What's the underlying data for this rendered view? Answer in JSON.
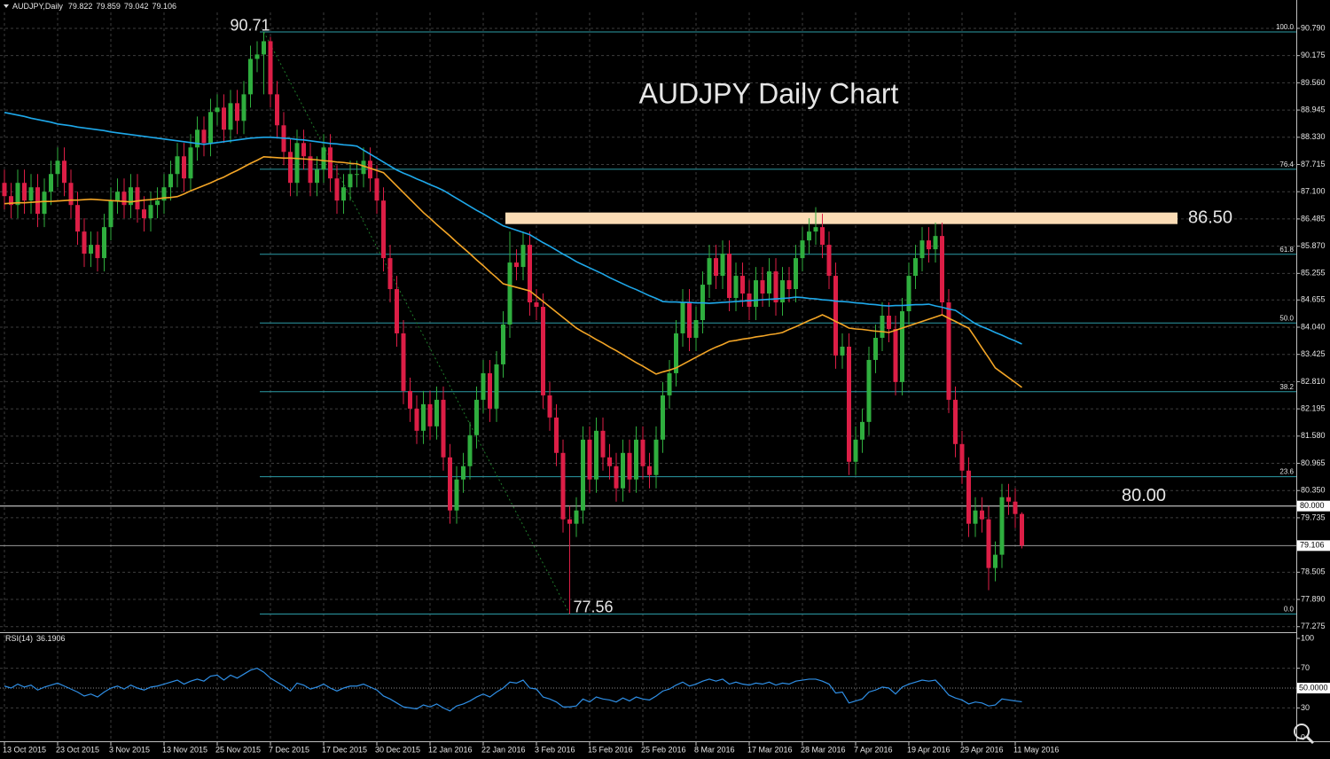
{
  "chart_data": {
    "type": "candlestick",
    "symbol_label": "AUDJPY,Daily",
    "title": "AUDJPY Daily Chart",
    "categories": [
      "13 Oct 2015",
      null,
      null,
      null,
      null,
      null,
      null,
      null,
      "23 Oct 2015",
      null,
      null,
      null,
      null,
      null,
      null,
      null,
      "3 Nov 2015",
      null,
      null,
      null,
      null,
      null,
      null,
      null,
      "13 Nov 2015",
      null,
      null,
      null,
      null,
      null,
      null,
      null,
      "25 Nov 2015",
      null,
      null,
      null,
      null,
      null,
      null,
      null,
      "7 Dec 2015",
      null,
      null,
      null,
      null,
      null,
      null,
      null,
      "17 Dec 2015",
      null,
      null,
      null,
      null,
      null,
      null,
      null,
      "30 Dec 2015",
      null,
      null,
      null,
      null,
      null,
      null,
      null,
      "12 Jan 2016",
      null,
      null,
      null,
      null,
      null,
      null,
      null,
      "22 Jan 2016",
      null,
      null,
      null,
      null,
      null,
      null,
      null,
      "3 Feb 2016",
      null,
      null,
      null,
      null,
      null,
      null,
      null,
      "15 Feb 2016",
      null,
      null,
      null,
      null,
      null,
      null,
      null,
      "25 Feb 2016",
      null,
      null,
      null,
      null,
      null,
      null,
      null,
      "8 Mar 2016",
      null,
      null,
      null,
      null,
      null,
      null,
      null,
      "17 Mar 2016",
      null,
      null,
      null,
      null,
      null,
      null,
      null,
      "28 Mar 2016",
      null,
      null,
      null,
      null,
      null,
      null,
      null,
      "7 Apr 2016",
      null,
      null,
      null,
      null,
      null,
      null,
      null,
      "19 Apr 2016",
      null,
      null,
      null,
      null,
      null,
      null,
      null,
      "29 Apr 2016",
      null,
      null,
      null,
      null,
      null,
      null,
      null,
      "11 May 2016",
      null
    ],
    "open": [
      87.3,
      87.0,
      86.8,
      87.3,
      86.9,
      87.2,
      86.6,
      87.1,
      87.5,
      87.8,
      87.3,
      86.8,
      86.2,
      85.7,
      85.9,
      85.6,
      86.3,
      86.9,
      87.1,
      86.8,
      87.2,
      86.7,
      86.5,
      86.8,
      86.9,
      87.2,
      87.5,
      87.9,
      87.4,
      88.1,
      88.5,
      88.2,
      88.9,
      89.0,
      88.5,
      89.1,
      88.7,
      89.3,
      90.1,
      90.2,
      90.5,
      89.3,
      88.6,
      88.0,
      87.3,
      88.2,
      87.9,
      87.3,
      87.6,
      88.1,
      87.4,
      86.9,
      87.2,
      87.5,
      87.5,
      87.8,
      87.4,
      86.9,
      85.6,
      84.9,
      83.9,
      82.6,
      82.2,
      81.7,
      82.3,
      81.8,
      82.4,
      81.1,
      79.9,
      80.6,
      80.9,
      81.6,
      82.4,
      83.0,
      82.2,
      83.2,
      84.1,
      85.5,
      85.4,
      85.9,
      84.6,
      84.5,
      82.5,
      82.0,
      81.2,
      79.7,
      79.6,
      79.9,
      81.5,
      80.6,
      81.7,
      81.1,
      80.9,
      80.4,
      81.2,
      80.6,
      81.5,
      80.9,
      80.7,
      81.5,
      82.5,
      83.0,
      83.9,
      84.6,
      83.8,
      84.2,
      85.0,
      85.6,
      85.2,
      85.7,
      84.7,
      85.2,
      84.8,
      84.5,
      85.1,
      84.8,
      85.3,
      84.6,
      85.1,
      84.9,
      85.6,
      86.0,
      86.2,
      86.3,
      85.9,
      85.2,
      83.4,
      83.6,
      81.0,
      81.5,
      81.9,
      83.3,
      83.8,
      84.3,
      84.0,
      82.8,
      84.4,
      85.2,
      85.6,
      86.0,
      85.8,
      86.1,
      84.6,
      82.4,
      81.4,
      80.8,
      79.6,
      79.9,
      79.7,
      78.6,
      78.9,
      80.2,
      80.1,
      79.822
    ],
    "high": [
      87.6,
      87.3,
      87.6,
      87.6,
      87.5,
      87.5,
      87.4,
      87.8,
      88.1,
      88.1,
      87.6,
      87.1,
      86.5,
      86.2,
      86.2,
      86.6,
      87.2,
      87.4,
      87.4,
      87.5,
      87.5,
      87.0,
      87.1,
      87.2,
      87.5,
      87.8,
      88.2,
      88.2,
      88.4,
      88.8,
      88.8,
      89.2,
      89.3,
      89.3,
      89.4,
      89.4,
      89.6,
      90.4,
      90.5,
      90.71,
      90.6,
      89.6,
      88.9,
      88.3,
      88.5,
      88.5,
      88.2,
      87.9,
      88.4,
      88.4,
      87.7,
      87.5,
      87.8,
      87.8,
      88.1,
      88.1,
      87.7,
      87.2,
      85.9,
      85.2,
      84.2,
      82.9,
      82.5,
      82.6,
      82.6,
      82.7,
      82.7,
      81.4,
      80.9,
      81.2,
      81.9,
      82.7,
      83.3,
      83.3,
      83.5,
      84.4,
      86.2,
      85.8,
      86.2,
      86.2,
      84.9,
      84.8,
      82.8,
      82.3,
      81.5,
      80.0,
      80.2,
      81.8,
      81.8,
      82.0,
      82.0,
      81.4,
      81.2,
      81.5,
      81.5,
      81.8,
      81.8,
      81.2,
      81.8,
      82.8,
      83.3,
      84.2,
      84.9,
      84.9,
      84.5,
      85.3,
      85.9,
      85.9,
      86.0,
      86.0,
      85.5,
      85.5,
      85.1,
      85.4,
      85.4,
      85.6,
      85.6,
      85.4,
      85.4,
      85.9,
      86.3,
      86.5,
      86.75,
      86.6,
      86.2,
      85.5,
      83.9,
      83.9,
      81.8,
      82.2,
      83.6,
      84.1,
      84.6,
      84.6,
      84.3,
      84.7,
      85.5,
      85.9,
      86.3,
      86.3,
      86.4,
      86.4,
      84.9,
      82.7,
      81.7,
      81.1,
      80.2,
      80.2,
      80.0,
      79.2,
      80.5,
      80.5,
      80.4,
      79.859
    ],
    "low": [
      86.7,
      86.5,
      86.5,
      86.6,
      86.6,
      86.3,
      86.3,
      86.8,
      87.2,
      87.0,
      86.5,
      85.9,
      85.4,
      85.4,
      85.3,
      85.3,
      86.0,
      86.6,
      86.5,
      86.5,
      86.4,
      86.2,
      86.2,
      86.5,
      86.6,
      86.9,
      87.2,
      87.1,
      87.1,
      87.8,
      87.9,
      87.9,
      88.6,
      88.2,
      88.2,
      88.4,
      88.4,
      89.0,
      89.8,
      89.3,
      89.0,
      88.3,
      87.7,
      87.0,
      87.0,
      87.6,
      87.0,
      87.0,
      87.3,
      87.1,
      86.6,
      86.6,
      86.9,
      87.2,
      87.2,
      87.1,
      86.6,
      85.3,
      84.6,
      83.6,
      82.3,
      81.9,
      81.4,
      81.4,
      81.5,
      81.5,
      80.8,
      79.6,
      79.6,
      80.3,
      80.6,
      81.3,
      82.1,
      81.9,
      81.9,
      82.9,
      83.8,
      85.1,
      85.1,
      84.3,
      84.2,
      82.2,
      81.7,
      80.9,
      79.4,
      77.56,
      79.3,
      79.6,
      80.3,
      80.3,
      80.8,
      80.6,
      80.1,
      80.1,
      80.3,
      80.3,
      80.6,
      80.4,
      80.4,
      81.2,
      82.2,
      82.7,
      83.6,
      83.5,
      83.5,
      83.9,
      84.7,
      84.9,
      84.9,
      84.4,
      84.4,
      84.5,
      84.2,
      84.2,
      84.5,
      84.5,
      84.3,
      84.3,
      84.6,
      84.6,
      85.3,
      85.7,
      85.9,
      85.6,
      84.9,
      83.1,
      83.1,
      80.7,
      80.7,
      81.2,
      81.6,
      83.0,
      83.5,
      83.7,
      82.5,
      82.5,
      84.1,
      84.9,
      85.3,
      85.5,
      85.5,
      84.3,
      82.1,
      81.1,
      80.5,
      79.3,
      79.3,
      79.4,
      78.1,
      78.3,
      78.6,
      79.8,
      79.5,
      79.042
    ],
    "close": [
      87.0,
      86.8,
      87.3,
      86.9,
      87.2,
      86.6,
      87.1,
      87.5,
      87.8,
      87.3,
      86.8,
      86.2,
      85.7,
      85.9,
      85.6,
      86.3,
      86.9,
      87.1,
      86.8,
      87.2,
      86.7,
      86.5,
      86.8,
      86.9,
      87.2,
      87.5,
      87.9,
      87.4,
      88.1,
      88.5,
      88.2,
      88.9,
      89.0,
      88.5,
      89.1,
      88.7,
      89.3,
      90.1,
      90.2,
      90.5,
      89.3,
      88.6,
      88.0,
      87.3,
      88.2,
      87.9,
      87.3,
      87.6,
      88.1,
      87.4,
      86.9,
      87.2,
      87.5,
      87.5,
      87.8,
      87.4,
      86.9,
      85.6,
      84.9,
      83.9,
      82.6,
      82.2,
      81.7,
      82.3,
      81.8,
      82.4,
      81.1,
      79.9,
      80.6,
      80.9,
      81.6,
      82.4,
      83.0,
      82.2,
      83.2,
      84.1,
      85.5,
      85.4,
      85.9,
      84.6,
      84.5,
      82.5,
      82.0,
      81.2,
      79.7,
      79.6,
      79.9,
      81.5,
      80.6,
      81.7,
      81.1,
      80.9,
      80.4,
      81.2,
      80.6,
      81.5,
      80.9,
      80.7,
      81.5,
      82.5,
      83.0,
      83.9,
      84.6,
      83.8,
      84.2,
      85.0,
      85.6,
      85.2,
      85.7,
      84.7,
      85.2,
      84.8,
      84.5,
      85.1,
      84.8,
      85.3,
      84.6,
      85.1,
      84.9,
      85.6,
      86.0,
      86.2,
      86.3,
      85.9,
      85.2,
      83.4,
      83.6,
      81.0,
      81.5,
      81.9,
      83.3,
      83.8,
      84.3,
      84.0,
      82.8,
      84.4,
      85.2,
      85.6,
      86.0,
      85.8,
      86.1,
      84.6,
      82.4,
      81.4,
      80.8,
      79.6,
      79.9,
      79.7,
      78.6,
      78.9,
      80.2,
      80.1,
      79.82,
      79.106
    ],
    "up_color": "#2fae3e",
    "down_color": "#dc1e46",
    "moving_averages": [
      {
        "color": "#1ea8ea",
        "values": [
          88.89,
          88.86,
          88.83,
          88.8,
          88.76,
          88.73,
          88.7,
          88.67,
          88.63,
          88.61,
          88.59,
          88.56,
          88.54,
          88.52,
          88.5,
          88.48,
          88.45,
          88.43,
          88.41,
          88.39,
          88.37,
          88.35,
          88.33,
          88.31,
          88.29,
          88.27,
          88.25,
          88.23,
          88.21,
          88.19,
          88.17,
          88.19,
          88.21,
          88.23,
          88.25,
          88.27,
          88.29,
          88.31,
          88.32,
          88.33,
          88.33,
          88.32,
          88.31,
          88.3,
          88.28,
          88.27,
          88.25,
          88.23,
          88.21,
          88.19,
          88.18,
          88.16,
          88.15,
          88.13,
          88.04,
          87.95,
          87.86,
          87.77,
          87.68,
          87.59,
          87.52,
          87.46,
          87.39,
          87.33,
          87.26,
          87.2,
          87.13,
          87.04,
          86.95,
          86.86,
          86.77,
          86.68,
          86.6,
          86.51,
          86.42,
          86.33,
          86.28,
          86.23,
          86.18,
          86.13,
          86.04,
          85.95,
          85.87,
          85.78,
          85.69,
          85.61,
          85.52,
          85.45,
          85.38,
          85.31,
          85.24,
          85.16,
          85.09,
          85.02,
          84.95,
          84.89,
          84.82,
          84.75,
          84.69,
          84.62,
          84.61,
          84.61,
          84.6,
          84.6,
          84.59,
          84.59,
          84.58,
          84.59,
          84.6,
          84.61,
          84.62,
          84.63,
          84.64,
          84.65,
          84.66,
          84.67,
          84.68,
          84.69,
          84.7,
          84.72,
          84.71,
          84.69,
          84.68,
          84.66,
          84.65,
          84.63,
          84.62,
          84.61,
          84.59,
          84.58,
          84.56,
          84.55,
          84.53,
          84.52,
          84.53,
          84.53,
          84.54,
          84.55,
          84.55,
          84.56,
          84.52,
          84.49,
          84.45,
          84.42,
          84.32,
          84.22,
          84.12,
          84.05,
          83.99,
          83.92,
          83.86,
          83.79,
          83.73,
          83.66
        ]
      },
      {
        "color": "#f3a526",
        "values": [
          86.83,
          86.84,
          86.85,
          86.85,
          86.86,
          86.87,
          86.88,
          86.88,
          86.89,
          86.9,
          86.91,
          86.91,
          86.92,
          86.93,
          86.92,
          86.91,
          86.9,
          86.89,
          86.88,
          86.87,
          86.89,
          86.91,
          86.92,
          86.94,
          86.96,
          86.97,
          86.99,
          87.05,
          87.12,
          87.18,
          87.24,
          87.3,
          87.37,
          87.43,
          87.51,
          87.58,
          87.66,
          87.74,
          87.81,
          87.89,
          87.88,
          87.87,
          87.86,
          87.86,
          87.85,
          87.84,
          87.83,
          87.82,
          87.8,
          87.79,
          87.77,
          87.76,
          87.74,
          87.73,
          87.68,
          87.63,
          87.58,
          87.53,
          87.38,
          87.23,
          87.08,
          86.93,
          86.78,
          86.63,
          86.5,
          86.36,
          86.23,
          86.1,
          85.96,
          85.83,
          85.7,
          85.56,
          85.43,
          85.29,
          85.16,
          85.02,
          84.98,
          84.94,
          84.9,
          84.86,
          84.74,
          84.62,
          84.5,
          84.38,
          84.26,
          84.14,
          84.02,
          83.93,
          83.85,
          83.76,
          83.68,
          83.59,
          83.51,
          83.42,
          83.33,
          83.24,
          83.16,
          83.07,
          82.98,
          83.03,
          83.07,
          83.12,
          83.2,
          83.28,
          83.36,
          83.44,
          83.52,
          83.59,
          83.65,
          83.72,
          83.74,
          83.77,
          83.79,
          83.82,
          83.84,
          83.87,
          83.89,
          83.92,
          83.99,
          84.05,
          84.12,
          84.19,
          84.25,
          84.32,
          84.25,
          84.17,
          84.1,
          84.02,
          84.0,
          83.99,
          83.97,
          83.95,
          83.94,
          83.92,
          83.97,
          84.02,
          84.07,
          84.12,
          84.17,
          84.22,
          84.27,
          84.32,
          84.24,
          84.17,
          84.09,
          84.02,
          83.8,
          83.57,
          83.35,
          83.12,
          83.01,
          82.9,
          82.79,
          82.68
        ]
      }
    ],
    "ylim": [
      77.17,
      91.15
    ],
    "yticks": [
      {
        "value": 90.79,
        "label": "90.790"
      },
      90.175,
      {
        "value": 89.56,
        "label": "89.560"
      },
      88.945,
      {
        "value": 88.33,
        "label": "88.330"
      },
      87.715,
      {
        "value": 87.1,
        "label": "87.100"
      },
      86.485,
      {
        "value": 85.87,
        "label": "85.870"
      },
      85.255,
      84.655,
      {
        "value": 84.04,
        "label": "84.040"
      },
      83.425,
      {
        "value": 82.81,
        "label": "82.810"
      },
      82.195,
      {
        "value": 81.58,
        "label": "81.580"
      },
      80.965,
      {
        "value": 80.35,
        "label": "80.350"
      },
      79.735,
      78.505,
      {
        "value": 77.89,
        "label": "77.890"
      },
      77.275
    ],
    "grid": true,
    "annotations": {
      "peak": 90.71,
      "trough": 77.56,
      "resistance": {
        "value": 86.5,
        "label": "86.50"
      },
      "support": {
        "value": 80,
        "label": "80.00",
        "axis_label": "80.000"
      }
    },
    "fibonacci": {
      "color": "#2c9ba6",
      "levels": [
        {
          "value": 0,
          "label": "0.0"
        },
        23.6,
        38.2,
        {
          "value": 50,
          "label": "50.0"
        },
        61.8,
        76.4,
        {
          "value": 100,
          "label": "100.0"
        }
      ]
    },
    "rsi": {
      "label": "RSI(14)",
      "color": "#2f8fe6",
      "ylim": [
        0,
        100
      ],
      "yticks": [
        0,
        30,
        70,
        100
      ],
      "level": {
        "value": 50,
        "label": "50.0000"
      },
      "values": [
        52,
        50,
        54,
        51,
        53,
        48,
        51,
        53,
        55,
        52,
        49,
        46,
        42,
        44,
        41,
        46,
        50,
        52,
        49,
        53,
        50,
        48,
        51,
        52,
        54,
        56,
        58,
        54,
        57,
        59,
        57,
        62,
        63,
        58,
        63,
        60,
        64,
        68,
        70,
        66,
        60,
        56,
        52,
        47,
        55,
        53,
        49,
        51,
        54,
        50,
        47,
        50,
        52,
        52,
        54,
        51,
        48,
        42,
        39,
        35,
        31,
        30,
        29,
        33,
        31,
        34,
        30,
        27,
        32,
        34,
        37,
        41,
        44,
        41,
        46,
        50,
        56,
        55,
        58,
        50,
        49,
        41,
        39,
        36,
        31,
        31,
        32,
        39,
        36,
        41,
        39,
        38,
        36,
        40,
        37,
        41,
        39,
        38,
        42,
        47,
        49,
        53,
        56,
        52,
        54,
        57,
        59,
        57,
        59,
        54,
        56,
        54,
        53,
        55,
        54,
        56,
        53,
        55,
        54,
        57,
        58,
        59,
        59,
        57,
        54,
        45,
        46,
        35,
        37,
        39,
        46,
        48,
        51,
        50,
        44,
        51,
        54,
        56,
        58,
        57,
        58,
        51,
        43,
        40,
        38,
        34,
        36,
        35,
        32,
        33,
        39,
        38,
        37,
        36.1906
      ]
    }
  }
}
